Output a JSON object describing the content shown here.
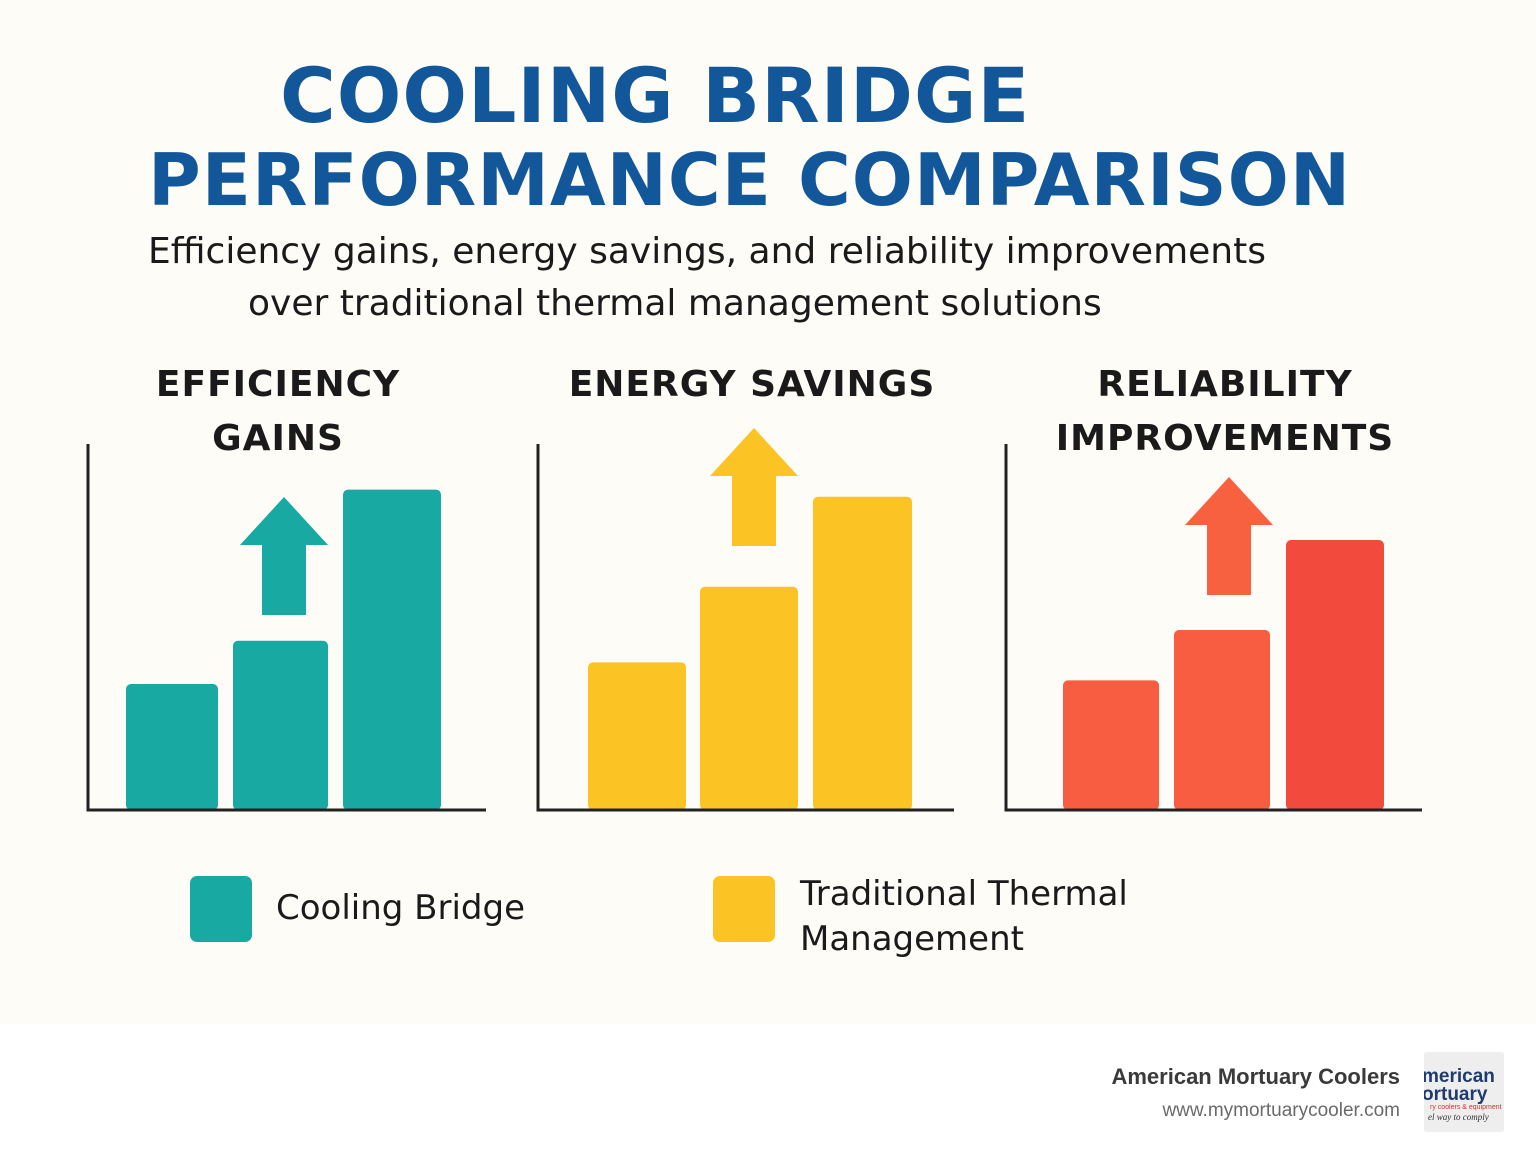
{
  "header": {
    "title_line1": "COOLING BRIDGE",
    "title_line2": "PERFORMANCE COMPARISON",
    "subtitle_line1": "Efficiency gains, energy savings, and reliability improvements",
    "subtitle_line2": "over traditional thermal management solutions"
  },
  "chart_data": [
    {
      "type": "bar",
      "title_lines": [
        "EFFICIENCY",
        "GAINS"
      ],
      "categories": [
        "1",
        "2",
        "3"
      ],
      "values": [
        35,
        47,
        89
      ],
      "ylim": [
        0,
        100
      ],
      "colors": [
        "#19a9a3",
        "#19a9a3",
        "#19a9a3"
      ],
      "arrow_color": "#19a9a3",
      "xlabel": "",
      "ylabel": "",
      "grid": false
    },
    {
      "type": "bar",
      "title_lines": [
        "ENERGY SAVINGS"
      ],
      "categories": [
        "1",
        "2",
        "3"
      ],
      "values": [
        41,
        62,
        87
      ],
      "ylim": [
        0,
        100
      ],
      "colors": [
        "#fcc324",
        "#fcc324",
        "#fcc324"
      ],
      "arrow_color": "#fcc324",
      "xlabel": "",
      "ylabel": "",
      "grid": false
    },
    {
      "type": "bar",
      "title_lines": [
        "RELIABILITY",
        "IMPROVEMENTS"
      ],
      "categories": [
        "1",
        "2",
        "3"
      ],
      "values": [
        36,
        50,
        75
      ],
      "ylim": [
        0,
        100
      ],
      "colors": [
        "#f85d41",
        "#f85d41",
        "#f24b3d"
      ],
      "arrow_color": "#f8613f",
      "xlabel": "",
      "ylabel": "",
      "grid": false
    }
  ],
  "legend": {
    "items": [
      {
        "label": "Cooling Bridge",
        "color": "#19a9a3"
      },
      {
        "label_line1": "Traditional Thermal",
        "label_line2": "Management",
        "color": "#fcc324"
      }
    ]
  },
  "footer": {
    "brand_name": "American Mortuary Coolers",
    "brand_url": "www.mymortuarycooler.com",
    "logo_line1": "merican",
    "logo_line2": "ortuary",
    "logo_line3": "ry coolers & equipment",
    "logo_line4": "el way to comply"
  },
  "colors": {
    "title": "#12579a",
    "text": "#1a1a1a",
    "axis": "#222222",
    "background": "#fdfcf7"
  }
}
